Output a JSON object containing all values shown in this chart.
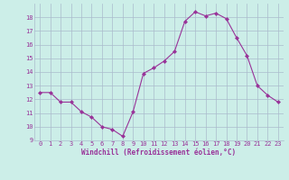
{
  "x": [
    0,
    1,
    2,
    3,
    4,
    5,
    6,
    7,
    8,
    9,
    10,
    11,
    12,
    13,
    14,
    15,
    16,
    17,
    18,
    19,
    20,
    21,
    22,
    23
  ],
  "y": [
    12.5,
    12.5,
    11.8,
    11.8,
    11.1,
    10.7,
    10.0,
    9.8,
    9.3,
    11.1,
    13.9,
    14.3,
    14.8,
    15.5,
    17.7,
    18.4,
    18.1,
    18.3,
    17.9,
    16.5,
    15.2,
    13.0,
    12.3,
    11.8
  ],
  "line_color": "#993399",
  "marker": "D",
  "marker_size": 2,
  "bg_color": "#cceee8",
  "grid_color": "#aabbcc",
  "ylim": [
    9,
    19
  ],
  "xlim": [
    -0.5,
    23.5
  ],
  "yticks": [
    9,
    10,
    11,
    12,
    13,
    14,
    15,
    16,
    17,
    18
  ],
  "xticks": [
    0,
    1,
    2,
    3,
    4,
    5,
    6,
    7,
    8,
    9,
    10,
    11,
    12,
    13,
    14,
    15,
    16,
    17,
    18,
    19,
    20,
    21,
    22,
    23
  ],
  "xlabel": "Windchill (Refroidissement éolien,°C)",
  "xlabel_color": "#993399",
  "tick_color": "#993399",
  "tick_fontsize": 5,
  "xlabel_fontsize": 5.5,
  "lw": 0.8
}
